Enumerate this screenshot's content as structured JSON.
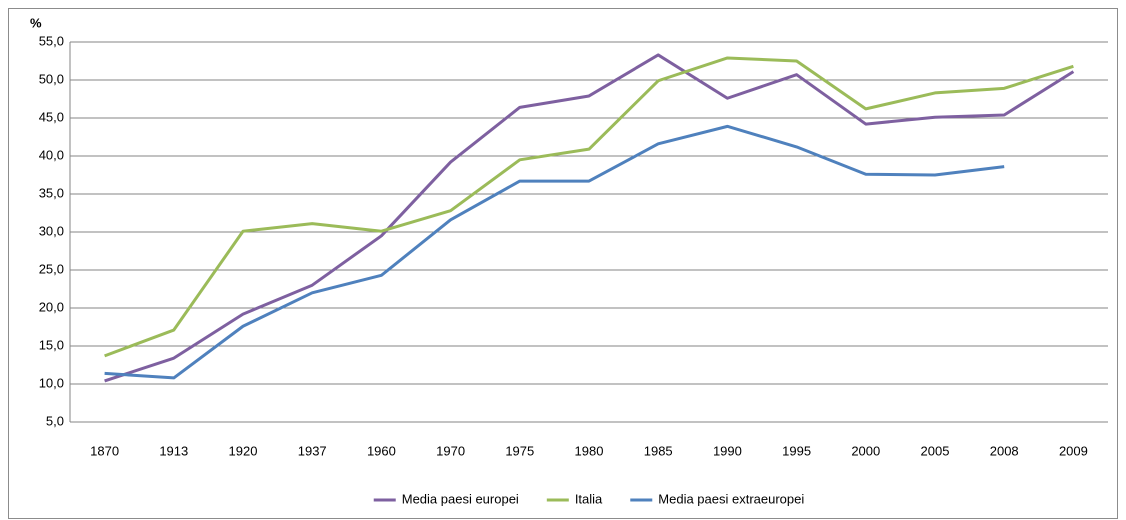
{
  "chart_data": {
    "type": "line",
    "y_label": "%",
    "categories": [
      "1870",
      "1913",
      "1920",
      "1937",
      "1960",
      "1970",
      "1975",
      "1980",
      "1985",
      "1990",
      "1995",
      "2000",
      "2005",
      "2008",
      "2009"
    ],
    "series": [
      {
        "name": "Media paesi europei",
        "color": "#7e60a0",
        "values": [
          10.4,
          13.4,
          19.2,
          23.0,
          29.5,
          39.2,
          46.4,
          47.9,
          53.3,
          47.6,
          50.7,
          44.2,
          45.1,
          45.4,
          51.1
        ]
      },
      {
        "name": "Italia",
        "color": "#9bbb59",
        "values": [
          13.7,
          17.1,
          30.1,
          31.1,
          30.1,
          32.8,
          39.5,
          40.9,
          49.9,
          52.9,
          52.5,
          46.2,
          48.3,
          48.9,
          51.8
        ]
      },
      {
        "name": "Media paesi extraeuropei",
        "color": "#4f81bd",
        "values": [
          11.4,
          10.8,
          17.6,
          22.0,
          24.3,
          31.6,
          36.7,
          36.7,
          41.6,
          43.9,
          41.2,
          37.6,
          37.5,
          38.6,
          null
        ]
      }
    ],
    "ylim": [
      5,
      55
    ],
    "yticks": [
      {
        "value": 5,
        "label": "5,0"
      },
      {
        "value": 10,
        "label": "10,0"
      },
      {
        "value": 15,
        "label": "15,0"
      },
      {
        "value": 20,
        "label": "20,0"
      },
      {
        "value": 25,
        "label": "25,0"
      },
      {
        "value": 30,
        "label": "30,0"
      },
      {
        "value": 35,
        "label": "35,0"
      },
      {
        "value": 40,
        "label": "40,0"
      },
      {
        "value": 45,
        "label": "45,0"
      },
      {
        "value": 50,
        "label": "50,0"
      },
      {
        "value": 55,
        "label": "55,0"
      }
    ],
    "grid": true,
    "legend": "bottom"
  }
}
